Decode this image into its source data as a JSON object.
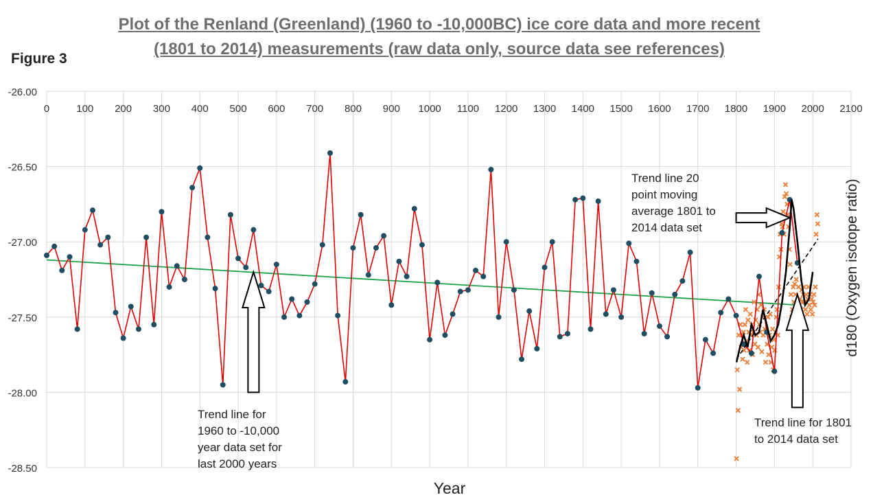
{
  "header": {
    "figure_label": "Figure 3",
    "title_line1": "Plot of  the Renland (Greenland) (1960 to -10,000BC) ice core data and more recent",
    "title_line2": "(1801 to 2014) measurements  (raw data only, source data see references)"
  },
  "annotations": {
    "trend_2000_l1": "Trend line for",
    "trend_2000_l2": "1960 to -10,000",
    "trend_2000_l3": "year data set for",
    "trend_2000_l4": "last 2000 years",
    "moving_avg_l1": "Trend line 20",
    "moving_avg_l2": "point moving",
    "moving_avg_l3": "average 1801 to",
    "moving_avg_l4": "2014 data set",
    "trend_1801_l1": "Trend line for 1801",
    "trend_1801_l2": "to 2014 data set"
  },
  "colors": {
    "renland_line": "#e00000",
    "renland_marker": "#1f4e63",
    "trend_renland": "#19a34a",
    "recent_marker": "#e8823c",
    "moving_average": "#000000",
    "trend_recent": "#000000",
    "grid": "#d9d9d9"
  },
  "chart_data": {
    "type": "scatter",
    "xlabel": "Year",
    "ylabel": "d180 (Oxygen isotope ratio)",
    "xlim": [
      0,
      2100
    ],
    "ylim": [
      -28.5,
      -26.0
    ],
    "x_ticks": [
      0,
      100,
      200,
      300,
      400,
      500,
      600,
      700,
      800,
      900,
      1000,
      1100,
      1200,
      1300,
      1400,
      1500,
      1600,
      1700,
      1800,
      1900,
      2000,
      2100
    ],
    "x_tick_labels": [
      "0",
      "100",
      "200",
      "300",
      "400",
      "500",
      "600",
      "700",
      "800",
      "900",
      "1000",
      "1100",
      "1200",
      "1300",
      "1400",
      "1500",
      "1600",
      "1700",
      "1800",
      "1900",
      "2000",
      "2100"
    ],
    "y_ticks": [
      -26.0,
      -26.5,
      -27.0,
      -27.5,
      -28.0,
      -28.5
    ],
    "y_tick_labels": [
      "-26.00",
      "-26.50",
      "-27.00",
      "-27.50",
      "-28.00",
      "-28.50"
    ],
    "grid": true,
    "x_axis_position": "top",
    "series": [
      {
        "kind": "line-markers",
        "x": [
          0,
          20,
          40,
          60,
          80,
          100,
          120,
          140,
          160,
          180,
          200,
          220,
          240,
          260,
          280,
          300,
          320,
          340,
          360,
          380,
          400,
          420,
          440,
          460,
          480,
          500,
          520,
          540,
          560,
          580,
          600,
          620,
          640,
          660,
          680,
          700,
          720,
          740,
          760,
          780,
          800,
          820,
          840,
          860,
          880,
          900,
          920,
          940,
          960,
          980,
          1000,
          1020,
          1040,
          1060,
          1080,
          1100,
          1120,
          1140,
          1160,
          1180,
          1200,
          1220,
          1240,
          1260,
          1280,
          1300,
          1320,
          1340,
          1360,
          1380,
          1400,
          1420,
          1440,
          1460,
          1480,
          1500,
          1520,
          1540,
          1560,
          1580,
          1600,
          1620,
          1640,
          1660,
          1680,
          1700,
          1720,
          1740,
          1760,
          1780,
          1800,
          1820,
          1840,
          1860,
          1880,
          1900,
          1920,
          1940,
          1960
        ],
        "y": [
          -27.09,
          -27.03,
          -27.19,
          -27.1,
          -27.58,
          -26.92,
          -26.79,
          -27.02,
          -26.97,
          -27.47,
          -27.64,
          -27.43,
          -27.58,
          -26.97,
          -27.55,
          -26.8,
          -27.3,
          -27.16,
          -27.25,
          -26.64,
          -26.51,
          -26.97,
          -27.31,
          -27.95,
          -26.82,
          -27.11,
          -27.17,
          -26.92,
          -27.29,
          -27.33,
          -27.15,
          -27.5,
          -27.38,
          -27.49,
          -27.4,
          -27.28,
          -27.02,
          -26.41,
          -27.49,
          -27.93,
          -27.04,
          -26.82,
          -27.22,
          -27.04,
          -26.96,
          -27.42,
          -27.13,
          -27.23,
          -26.78,
          -27.02,
          -27.65,
          -27.27,
          -27.62,
          -27.48,
          -27.33,
          -27.32,
          -27.19,
          -27.23,
          -26.52,
          -27.5,
          -27.0,
          -27.32,
          -27.78,
          -27.46,
          -27.71,
          -27.17,
          -27.0,
          -27.63,
          -27.61,
          -26.72,
          -26.71,
          -27.58,
          -26.73,
          -27.48,
          -27.32,
          -27.5,
          -27.01,
          -27.13,
          -27.61,
          -27.34,
          -27.56,
          -27.63,
          -27.35,
          -27.26,
          -27.07,
          -27.97,
          -27.65,
          -27.74,
          -27.47,
          -27.38,
          -27.49,
          -27.68,
          -27.74,
          -27.23,
          -27.6,
          -27.86,
          -26.94,
          -26.72,
          -27.14
        ]
      },
      {
        "kind": "linear-trend",
        "x": [
          0,
          1960
        ],
        "y": [
          -27.12,
          -27.42
        ]
      },
      {
        "kind": "scatter-x-markers",
        "x": [
          1801,
          1803,
          1805,
          1807,
          1809,
          1811,
          1813,
          1815,
          1817,
          1819,
          1821,
          1823,
          1825,
          1827,
          1829,
          1831,
          1833,
          1835,
          1837,
          1839,
          1841,
          1843,
          1845,
          1847,
          1849,
          1851,
          1853,
          1855,
          1857,
          1859,
          1861,
          1863,
          1865,
          1867,
          1869,
          1871,
          1873,
          1875,
          1877,
          1879,
          1881,
          1883,
          1885,
          1887,
          1889,
          1891,
          1893,
          1895,
          1897,
          1899,
          1901,
          1903,
          1905,
          1907,
          1909,
          1911,
          1913,
          1915,
          1917,
          1919,
          1921,
          1923,
          1925,
          1927,
          1929,
          1931,
          1933,
          1935,
          1937,
          1939,
          1941,
          1943,
          1945,
          1947,
          1949,
          1951,
          1953,
          1955,
          1957,
          1959,
          1961,
          1963,
          1965,
          1967,
          1969,
          1971,
          1973,
          1975,
          1977,
          1979,
          1981,
          1983,
          1985,
          1987,
          1989,
          1991,
          1993,
          1995,
          1997,
          1999,
          2001,
          2003,
          2005,
          2007,
          2009,
          2011,
          2013
        ],
        "y": [
          -28.44,
          -27.85,
          -28.12,
          -27.62,
          -27.98,
          -27.55,
          -27.7,
          -27.62,
          -27.78,
          -27.6,
          -27.72,
          -27.55,
          -27.45,
          -27.66,
          -27.8,
          -27.52,
          -27.6,
          -27.72,
          -27.48,
          -27.62,
          -27.55,
          -27.75,
          -27.6,
          -27.4,
          -27.68,
          -27.52,
          -27.62,
          -27.45,
          -27.7,
          -27.35,
          -27.55,
          -27.6,
          -27.42,
          -27.73,
          -27.5,
          -27.62,
          -27.45,
          -27.58,
          -27.8,
          -27.6,
          -27.68,
          -27.5,
          -27.75,
          -27.62,
          -27.48,
          -27.8,
          -27.7,
          -27.58,
          -27.85,
          -27.65,
          -27.72,
          -27.6,
          -27.5,
          -27.45,
          -27.62,
          -27.3,
          -27.1,
          -26.95,
          -27.05,
          -26.88,
          -26.9,
          -26.8,
          -26.95,
          -26.7,
          -26.62,
          -26.68,
          -26.75,
          -26.82,
          -26.9,
          -27.05,
          -27.15,
          -27.35,
          -27.5,
          -27.45,
          -27.3,
          -27.4,
          -27.28,
          -27.35,
          -27.25,
          -27.45,
          -27.4,
          -27.3,
          -27.48,
          -27.38,
          -27.45,
          -27.32,
          -27.4,
          -27.35,
          -27.3,
          -27.4,
          -27.45,
          -27.35,
          -27.48,
          -27.38,
          -27.3,
          -27.42,
          -27.35,
          -27.45,
          -27.38,
          -27.48,
          -27.4,
          -27.35,
          -27.42,
          -27.3,
          -26.95,
          -26.82,
          -26.88
        ]
      },
      {
        "kind": "moving-average",
        "x": [
          1801,
          1810,
          1820,
          1830,
          1840,
          1850,
          1860,
          1870,
          1880,
          1890,
          1900,
          1910,
          1920,
          1930,
          1940,
          1945,
          1950,
          1960,
          1970,
          1980,
          1990,
          2000
        ],
        "y": [
          -27.8,
          -27.7,
          -27.62,
          -27.7,
          -27.55,
          -27.62,
          -27.6,
          -27.45,
          -27.55,
          -27.66,
          -27.62,
          -27.55,
          -27.4,
          -27.2,
          -26.9,
          -26.72,
          -26.78,
          -27.0,
          -27.25,
          -27.42,
          -27.38,
          -27.2
        ]
      },
      {
        "kind": "linear-trend-dashed",
        "x": [
          1801,
          2014
        ],
        "y": [
          -27.78,
          -26.98
        ]
      }
    ],
    "arrows": [
      {
        "from": [
          540,
          -28.0
        ],
        "to": [
          540,
          -27.2
        ],
        "direction": "up"
      },
      {
        "from": [
          1960,
          -28.1
        ],
        "to": [
          1960,
          -27.35
        ],
        "direction": "up"
      },
      {
        "from": [
          1800,
          -26.84
        ],
        "to": [
          1940,
          -26.84
        ],
        "direction": "right"
      }
    ]
  }
}
